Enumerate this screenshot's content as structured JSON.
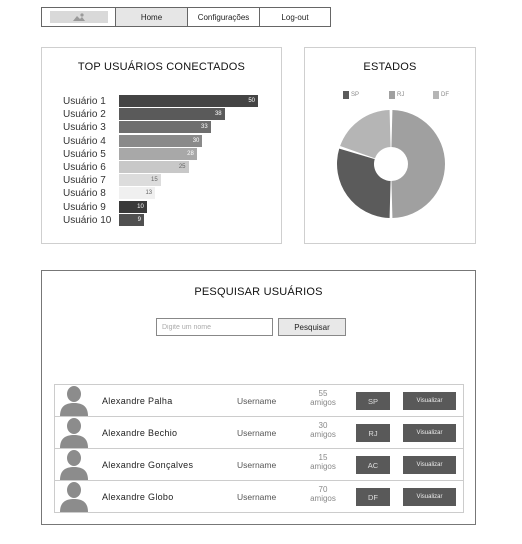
{
  "nav": {
    "home": "Home",
    "configuracoes": "Configurações",
    "logout": "Log-out"
  },
  "top_users": {
    "title": "TOP USUÁRIOS CONECTADOS",
    "chart_data": {
      "type": "bar",
      "categories": [
        "Usuário 1",
        "Usuário 2",
        "Usuário 3",
        "Usuário 4",
        "Usuário 5",
        "Usuário 6",
        "Usuário 7",
        "Usuário 8",
        "Usuário 9",
        "Usuário 10"
      ],
      "values": [
        50,
        38,
        33,
        30,
        28,
        25,
        15,
        13,
        10,
        9
      ],
      "colors": [
        "#444444",
        "#5a5a5a",
        "#6e6e6e",
        "#8a8a8a",
        "#a8a8a8",
        "#c8c8c8",
        "#dcdcdc",
        "#f0f0f0",
        "#3a3a3a",
        "#505050"
      ]
    }
  },
  "estados": {
    "title": "ESTADOS",
    "chart_data": {
      "type": "pie",
      "categories": [
        "SP",
        "RJ",
        "DF"
      ],
      "values": [
        30,
        50,
        20
      ],
      "colors": [
        "#5b5b5b",
        "#a0a0a0",
        "#b5b5b5"
      ]
    }
  },
  "search": {
    "title": "PESQUISAR USUÁRIOS",
    "placeholder": "Digite um nome",
    "button": "Pesquisar",
    "users": [
      {
        "name": "Alexandre Palha",
        "username": "Username",
        "friends_count": "55",
        "friends_label": "amigos",
        "state": "SP",
        "action": "Visualizar"
      },
      {
        "name": "Alexandre Bechio",
        "username": "Username",
        "friends_count": "30",
        "friends_label": "amigos",
        "state": "RJ",
        "action": "Visualizar"
      },
      {
        "name": "Alexandre Gonçalves",
        "username": "Username",
        "friends_count": "15",
        "friends_label": "amigos",
        "state": "AC",
        "action": "Visualizar"
      },
      {
        "name": "Alexandre  Globo",
        "username": "Username",
        "friends_count": "70",
        "friends_label": "amigos",
        "state": "DF",
        "action": "Visualizar"
      }
    ]
  }
}
